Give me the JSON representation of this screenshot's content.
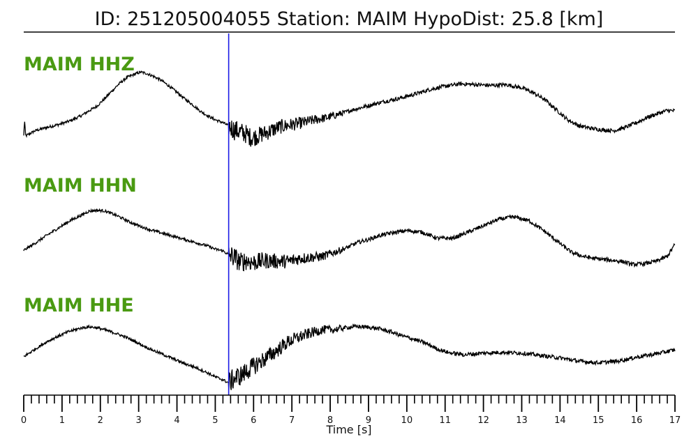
{
  "header": {
    "title": "ID: 251205004055   Station: MAIM   HypoDist:     25.8 [km]"
  },
  "colors": {
    "trace": "#000000",
    "label": "#4a9a12",
    "pick_line": "#1a1ae6",
    "axis": "#000000"
  },
  "chart_data": {
    "type": "line",
    "title": "ID: 251205004055   Station: MAIM   HypoDist:     25.8 [km]",
    "xlabel": "Time [s]",
    "ylabel": "",
    "xlim": [
      0,
      17
    ],
    "x_ticks": [
      0,
      1,
      2,
      3,
      4,
      5,
      6,
      7,
      8,
      9,
      10,
      11,
      12,
      13,
      14,
      15,
      16,
      17
    ],
    "minor_tick_step": 0.2,
    "grid": false,
    "pick_time": 5.35,
    "amplitude_units": "relative",
    "series": [
      {
        "name": "MAIM HHZ",
        "baseline": 0,
        "points": [
          [
            0.0,
            -0.95
          ],
          [
            0.02,
            -0.55
          ],
          [
            0.05,
            -0.95
          ],
          [
            0.3,
            -0.82
          ],
          [
            0.6,
            -0.74
          ],
          [
            0.9,
            -0.67
          ],
          [
            1.2,
            -0.58
          ],
          [
            1.5,
            -0.45
          ],
          [
            1.7,
            -0.33
          ],
          [
            1.9,
            -0.22
          ],
          [
            2.1,
            -0.04
          ],
          [
            2.3,
            0.16
          ],
          [
            2.5,
            0.35
          ],
          [
            2.7,
            0.5
          ],
          [
            2.9,
            0.58
          ],
          [
            3.05,
            0.63
          ],
          [
            3.2,
            0.6
          ],
          [
            3.4,
            0.52
          ],
          [
            3.6,
            0.42
          ],
          [
            3.8,
            0.28
          ],
          [
            4.0,
            0.13
          ],
          [
            4.2,
            -0.03
          ],
          [
            4.4,
            -0.17
          ],
          [
            4.6,
            -0.33
          ],
          [
            4.8,
            -0.45
          ],
          [
            5.0,
            -0.55
          ],
          [
            5.2,
            -0.62
          ],
          [
            5.35,
            -0.7
          ],
          [
            5.5,
            -0.8
          ],
          [
            5.65,
            -0.85
          ],
          [
            5.8,
            -0.9
          ],
          [
            5.95,
            -1.0
          ],
          [
            6.1,
            -0.95
          ],
          [
            6.3,
            -0.88
          ],
          [
            6.5,
            -0.8
          ],
          [
            6.7,
            -0.72
          ],
          [
            7.0,
            -0.67
          ],
          [
            7.3,
            -0.62
          ],
          [
            7.6,
            -0.55
          ],
          [
            7.9,
            -0.5
          ],
          [
            8.2,
            -0.42
          ],
          [
            8.6,
            -0.3
          ],
          [
            9.0,
            -0.2
          ],
          [
            9.4,
            -0.1
          ],
          [
            9.8,
            -0.02
          ],
          [
            10.2,
            0.08
          ],
          [
            10.6,
            0.2
          ],
          [
            11.0,
            0.28
          ],
          [
            11.4,
            0.34
          ],
          [
            11.8,
            0.32
          ],
          [
            12.2,
            0.3
          ],
          [
            12.6,
            0.32
          ],
          [
            13.0,
            0.24
          ],
          [
            13.3,
            0.12
          ],
          [
            13.6,
            -0.05
          ],
          [
            13.9,
            -0.3
          ],
          [
            14.2,
            -0.55
          ],
          [
            14.5,
            -0.7
          ],
          [
            14.8,
            -0.76
          ],
          [
            15.1,
            -0.8
          ],
          [
            15.4,
            -0.82
          ],
          [
            15.7,
            -0.74
          ],
          [
            16.0,
            -0.62
          ],
          [
            16.3,
            -0.48
          ],
          [
            16.6,
            -0.38
          ],
          [
            16.8,
            -0.32
          ],
          [
            17.0,
            -0.33
          ]
        ]
      },
      {
        "name": "MAIM HHN",
        "baseline": 0,
        "points": [
          [
            0.0,
            -0.85
          ],
          [
            0.3,
            -0.67
          ],
          [
            0.6,
            -0.48
          ],
          [
            0.9,
            -0.3
          ],
          [
            1.2,
            -0.12
          ],
          [
            1.5,
            0.02
          ],
          [
            1.7,
            0.12
          ],
          [
            1.9,
            0.14
          ],
          [
            2.1,
            0.13
          ],
          [
            2.3,
            0.06
          ],
          [
            2.5,
            -0.02
          ],
          [
            2.7,
            -0.12
          ],
          [
            3.0,
            -0.24
          ],
          [
            3.3,
            -0.34
          ],
          [
            3.6,
            -0.42
          ],
          [
            3.9,
            -0.5
          ],
          [
            4.2,
            -0.58
          ],
          [
            4.5,
            -0.66
          ],
          [
            4.8,
            -0.74
          ],
          [
            5.0,
            -0.82
          ],
          [
            5.2,
            -0.86
          ],
          [
            5.35,
            -0.96
          ],
          [
            5.5,
            -1.02
          ],
          [
            5.65,
            -1.15
          ],
          [
            5.8,
            -1.1
          ],
          [
            6.0,
            -1.15
          ],
          [
            6.3,
            -1.1
          ],
          [
            6.6,
            -1.12
          ],
          [
            6.9,
            -1.12
          ],
          [
            7.2,
            -1.05
          ],
          [
            7.5,
            -1.02
          ],
          [
            7.8,
            -1.0
          ],
          [
            8.1,
            -0.9
          ],
          [
            8.4,
            -0.8
          ],
          [
            8.7,
            -0.66
          ],
          [
            9.0,
            -0.58
          ],
          [
            9.3,
            -0.48
          ],
          [
            9.6,
            -0.42
          ],
          [
            10.0,
            -0.36
          ],
          [
            10.4,
            -0.4
          ],
          [
            10.8,
            -0.55
          ],
          [
            11.2,
            -0.55
          ],
          [
            11.6,
            -0.4
          ],
          [
            12.0,
            -0.24
          ],
          [
            12.4,
            -0.08
          ],
          [
            12.8,
            -0.02
          ],
          [
            13.2,
            -0.12
          ],
          [
            13.6,
            -0.38
          ],
          [
            14.0,
            -0.68
          ],
          [
            14.3,
            -0.9
          ],
          [
            14.6,
            -1.0
          ],
          [
            14.9,
            -1.05
          ],
          [
            15.2,
            -1.08
          ],
          [
            15.6,
            -1.12
          ],
          [
            15.9,
            -1.2
          ],
          [
            16.2,
            -1.18
          ],
          [
            16.5,
            -1.12
          ],
          [
            16.8,
            -1.0
          ],
          [
            17.0,
            -0.7
          ]
        ]
      },
      {
        "name": "MAIM HHE",
        "baseline": 0,
        "points": [
          [
            0.0,
            -0.55
          ],
          [
            0.3,
            -0.36
          ],
          [
            0.6,
            -0.18
          ],
          [
            0.9,
            -0.04
          ],
          [
            1.2,
            0.08
          ],
          [
            1.5,
            0.16
          ],
          [
            1.7,
            0.19
          ],
          [
            1.9,
            0.17
          ],
          [
            2.1,
            0.12
          ],
          [
            2.4,
            0.03
          ],
          [
            2.7,
            -0.08
          ],
          [
            3.0,
            -0.22
          ],
          [
            3.3,
            -0.36
          ],
          [
            3.6,
            -0.48
          ],
          [
            3.9,
            -0.6
          ],
          [
            4.2,
            -0.72
          ],
          [
            4.5,
            -0.82
          ],
          [
            4.8,
            -0.95
          ],
          [
            5.0,
            -1.05
          ],
          [
            5.2,
            -1.12
          ],
          [
            5.35,
            -1.2
          ],
          [
            5.5,
            -1.08
          ],
          [
            5.7,
            -1.0
          ],
          [
            5.9,
            -0.85
          ],
          [
            6.1,
            -0.72
          ],
          [
            6.3,
            -0.6
          ],
          [
            6.6,
            -0.4
          ],
          [
            6.9,
            -0.18
          ],
          [
            7.2,
            -0.06
          ],
          [
            7.5,
            0.04
          ],
          [
            7.8,
            0.12
          ],
          [
            8.1,
            0.12
          ],
          [
            8.4,
            0.17
          ],
          [
            8.7,
            0.2
          ],
          [
            9.0,
            0.18
          ],
          [
            9.3,
            0.14
          ],
          [
            9.6,
            0.06
          ],
          [
            9.9,
            -0.04
          ],
          [
            10.2,
            -0.12
          ],
          [
            10.5,
            -0.22
          ],
          [
            10.8,
            -0.36
          ],
          [
            11.1,
            -0.45
          ],
          [
            11.5,
            -0.5
          ],
          [
            12.0,
            -0.46
          ],
          [
            12.5,
            -0.44
          ],
          [
            13.0,
            -0.46
          ],
          [
            13.5,
            -0.52
          ],
          [
            14.0,
            -0.58
          ],
          [
            14.5,
            -0.66
          ],
          [
            15.0,
            -0.7
          ],
          [
            15.5,
            -0.66
          ],
          [
            16.0,
            -0.56
          ],
          [
            16.5,
            -0.48
          ],
          [
            17.0,
            -0.38
          ]
        ]
      }
    ]
  }
}
